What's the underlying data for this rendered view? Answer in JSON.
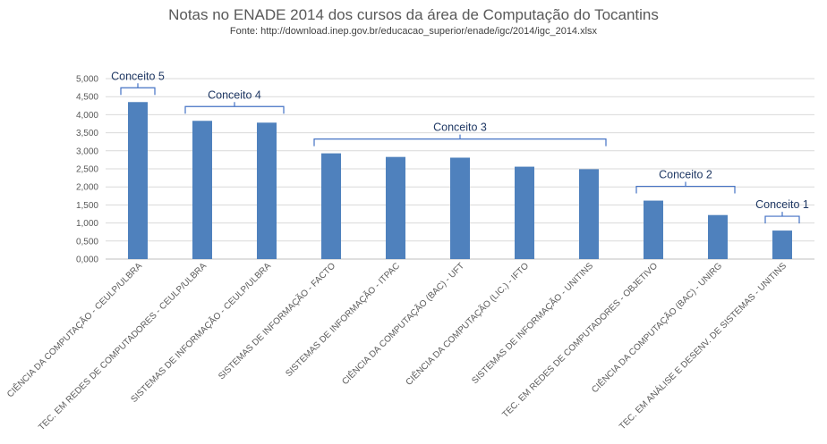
{
  "chart_data": {
    "type": "bar",
    "title": "Notas no ENADE 2014 dos cursos da área de Computação do Tocantins",
    "subtitle": "Fonte:  http://download.inep.gov.br/educacao_superior/enade/igc/2014/igc_2014.xlsx",
    "xlabel": "",
    "ylabel": "",
    "ylim": [
      0,
      5
    ],
    "yticks": [
      "0,000",
      "0,500",
      "1,000",
      "1,500",
      "2,000",
      "2,500",
      "3,000",
      "3,500",
      "4,000",
      "4,500",
      "5,000"
    ],
    "grid": true,
    "legend": "none",
    "bar_color": "#4f81bd",
    "categories": [
      "CIÊNCIA DA COMPUTAÇÃO - CEULP/ULBRA",
      "TEC. EM REDES DE COMPUTADORES - CEULP/ULBRA",
      "SISTEMAS DE INFORMAÇÃO - CEULP/ULBRA",
      "SISTEMAS DE INFORMAÇÃO - FACTO",
      "SISTEMAS DE INFORMAÇÃO - ITPAC",
      "CIÊNCIA DA COMPUTAÇÃO (BAC) - UFT",
      "CIÊNCIA DA COMPUTAÇÃO (LIC.) - IFTO",
      "SISTEMAS DE INFORMAÇÃO - UNITINS",
      "TEC. EM REDES DE COMPUTADORES - OBJETIVO",
      "CIÊNCIA DA COMPUTAÇÃO (BAC) - UNIRG",
      "TEC. EM ANÁLISE E DESENV. DE SISTEMAS - UNITINS"
    ],
    "values": [
      4.35,
      3.83,
      3.78,
      2.93,
      2.83,
      2.81,
      2.56,
      2.49,
      1.62,
      1.22,
      0.79
    ],
    "annotations": [
      {
        "label": "Conceito 5",
        "from": 0,
        "to": 0
      },
      {
        "label": "Conceito 4",
        "from": 1,
        "to": 2
      },
      {
        "label": "Conceito 3",
        "from": 3,
        "to": 7
      },
      {
        "label": "Conceito 2",
        "from": 8,
        "to": 9
      },
      {
        "label": "Conceito 1",
        "from": 10,
        "to": 10
      }
    ]
  }
}
